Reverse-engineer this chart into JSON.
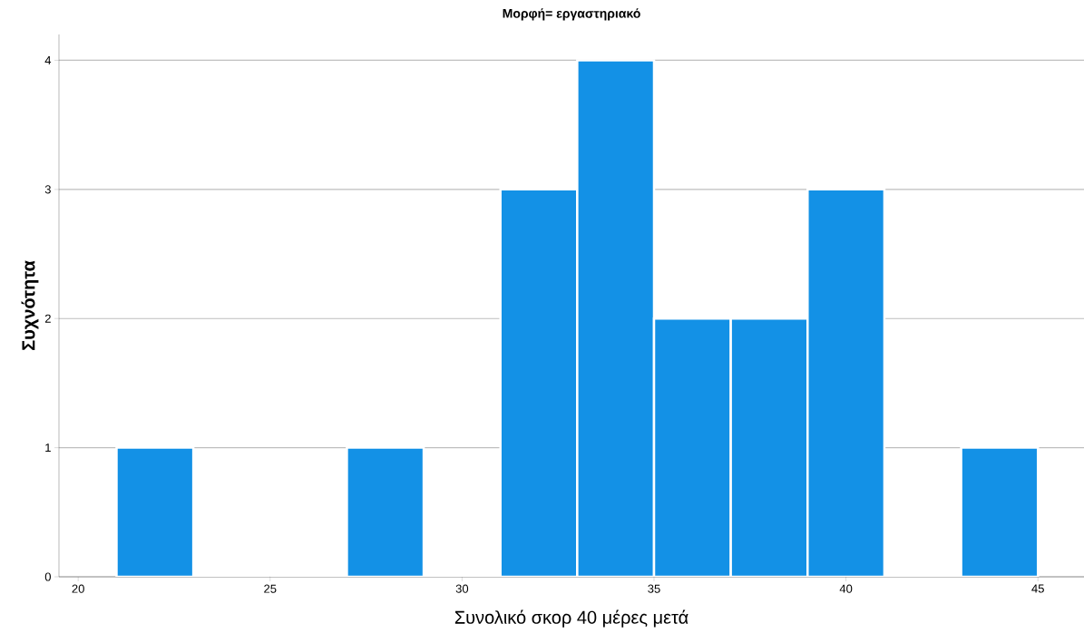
{
  "chart_data": {
    "type": "histogram",
    "title": "Μορφή= εργαστηριακό",
    "xlabel": "Συνολικό σκορ 40 μέρες μετά",
    "ylabel": "Συχνότητα",
    "bins": [
      21,
      23,
      25,
      27,
      29,
      31,
      33,
      35,
      37,
      39,
      41,
      43,
      45
    ],
    "values": [
      1,
      0,
      0,
      1,
      0,
      3,
      4,
      2,
      2,
      3,
      0,
      1
    ],
    "color": "#1391e6",
    "xlim": [
      19.5,
      46.2
    ],
    "ylim": [
      0,
      4.2
    ],
    "xticks": [
      20,
      25,
      30,
      35,
      40,
      45
    ],
    "yticks": [
      0,
      1,
      2,
      3,
      4
    ],
    "grid": "y"
  }
}
